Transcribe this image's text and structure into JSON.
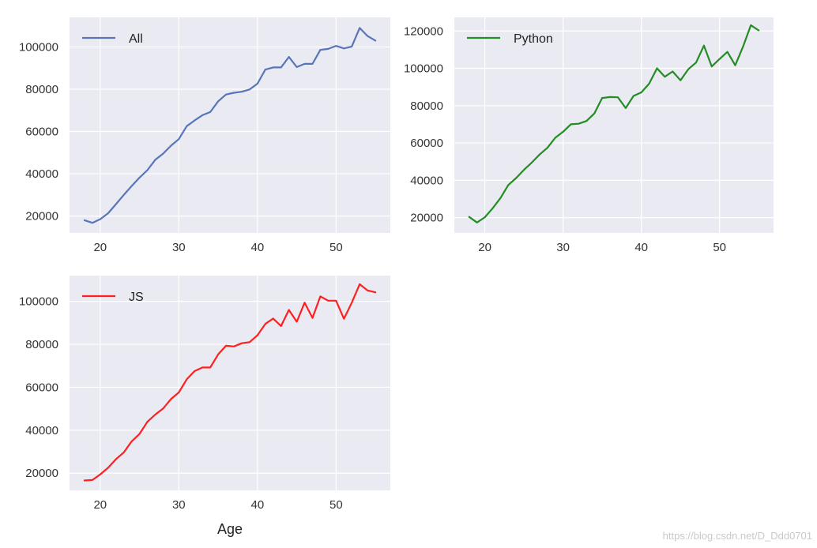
{
  "colors": {
    "panel_bg": "#eaeaf2",
    "grid": "#ffffff"
  },
  "watermark": "https://blog.csdn.net/D_Ddd0701",
  "chart_data": [
    {
      "type": "line",
      "xlim": [
        16.1,
        56.9
      ],
      "ylim": [
        12000,
        114000
      ],
      "xticks": [
        20,
        30,
        40,
        50
      ],
      "yticks": [
        20000,
        40000,
        60000,
        80000,
        100000
      ],
      "xlabel": "",
      "grid": true,
      "legend": "top-left",
      "series": [
        {
          "name": "All",
          "color": "#5875b8",
          "x": [
            18,
            19,
            20,
            21,
            22,
            23,
            24,
            25,
            26,
            27,
            28,
            29,
            30,
            31,
            32,
            33,
            34,
            35,
            36,
            37,
            38,
            39,
            40,
            41,
            42,
            43,
            44,
            45,
            46,
            47,
            48,
            49,
            50,
            51,
            52,
            53,
            54,
            55
          ],
          "values": [
            18000,
            16800,
            18500,
            21300,
            25600,
            30000,
            34200,
            38200,
            41700,
            46600,
            49500,
            53300,
            56400,
            62500,
            65200,
            67700,
            69200,
            74300,
            77500,
            78300,
            78800,
            79900,
            82600,
            89300,
            90300,
            90300,
            95300,
            90500,
            92000,
            92000,
            98600,
            99100,
            100500,
            99300,
            100200,
            109000,
            105200,
            103000
          ]
        }
      ]
    },
    {
      "type": "line",
      "xlim": [
        16.1,
        56.9
      ],
      "ylim": [
        11800,
        127300
      ],
      "xticks": [
        20,
        30,
        40,
        50
      ],
      "yticks": [
        20000,
        40000,
        60000,
        80000,
        100000,
        120000
      ],
      "xlabel": "",
      "grid": true,
      "legend": "top-left",
      "series": [
        {
          "name": "Python",
          "color": "#238c23",
          "x": [
            18,
            19,
            20,
            21,
            22,
            23,
            24,
            25,
            26,
            27,
            28,
            29,
            30,
            31,
            32,
            33,
            34,
            35,
            36,
            37,
            38,
            39,
            40,
            41,
            42,
            43,
            44,
            45,
            46,
            47,
            48,
            49,
            50,
            51,
            52,
            53,
            54,
            55
          ],
          "values": [
            20400,
            17400,
            20200,
            25000,
            30500,
            37500,
            41200,
            45600,
            49500,
            53800,
            57400,
            62800,
            66000,
            70000,
            70300,
            71800,
            75800,
            84100,
            84600,
            84500,
            78700,
            85200,
            87100,
            91800,
            100000,
            95500,
            98300,
            93600,
            99500,
            103100,
            112200,
            101000,
            105000,
            108800,
            101600,
            111600,
            123100,
            120300
          ]
        }
      ]
    },
    {
      "type": "line",
      "xlim": [
        16.1,
        56.9
      ],
      "ylim": [
        12000,
        112000
      ],
      "xticks": [
        20,
        30,
        40,
        50
      ],
      "yticks": [
        20000,
        40000,
        60000,
        80000,
        100000
      ],
      "xlabel": "Age",
      "grid": true,
      "legend": "top-left",
      "series": [
        {
          "name": "JS",
          "color": "#ff1f1f",
          "x": [
            18,
            19,
            20,
            21,
            22,
            23,
            24,
            25,
            26,
            27,
            28,
            29,
            30,
            31,
            32,
            33,
            34,
            35,
            36,
            37,
            38,
            39,
            40,
            41,
            42,
            43,
            44,
            45,
            46,
            47,
            48,
            49,
            50,
            51,
            52,
            53,
            54,
            55
          ],
          "values": [
            16600,
            16800,
            19400,
            22500,
            26500,
            29700,
            34800,
            38300,
            43900,
            47300,
            50100,
            54500,
            57600,
            63700,
            67500,
            69200,
            69200,
            75300,
            79300,
            79000,
            80500,
            81000,
            84200,
            89500,
            92000,
            88500,
            96000,
            90500,
            99400,
            92300,
            102300,
            100300,
            100300,
            91900,
            99400,
            108000,
            105100,
            104200
          ]
        }
      ]
    }
  ]
}
